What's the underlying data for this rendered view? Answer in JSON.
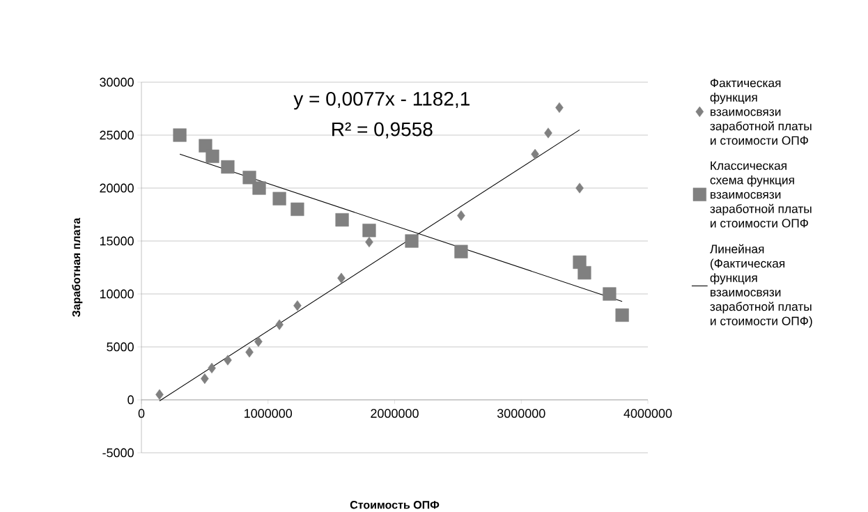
{
  "chart_data": {
    "type": "scatter",
    "xlabel": "Стоимость ОПФ",
    "ylabel": "Заработная плата",
    "xlim": [
      0,
      4000000
    ],
    "ylim": [
      -5000,
      30000
    ],
    "xticks": [
      0,
      1000000,
      2000000,
      3000000,
      4000000
    ],
    "yticks": [
      -5000,
      0,
      5000,
      10000,
      15000,
      20000,
      25000,
      30000
    ],
    "grid": "y",
    "legend": "right",
    "annotations": [
      "y = 0,0077x - 1182,1",
      "R² = 0,9558"
    ],
    "series": [
      {
        "name": "Фактическая функция взаимосвязи заработной платы и стоимости ОПФ",
        "marker": "diamond",
        "color": "#808080",
        "x": [
          143000,
          500000,
          556000,
          682000,
          853000,
          924000,
          1090000,
          1232000,
          1579000,
          1799000,
          2525000,
          3109000,
          3213000,
          3301000,
          3461000
        ],
        "values": [
          500,
          2000,
          3000,
          3750,
          4500,
          5500,
          7100,
          8900,
          11500,
          14900,
          17400,
          23200,
          25200,
          27600,
          20000
        ]
      },
      {
        "name": "Классическая схема функция взаимосвязи заработной платы и стоимости ОПФ",
        "marker": "square",
        "color": "#808080",
        "x": [
          303000,
          506000,
          561000,
          682000,
          853000,
          930000,
          1090000,
          1232000,
          1585000,
          1799000,
          2135000,
          2525000,
          3461000,
          3499000,
          3697000,
          3797000
        ],
        "values": [
          25000,
          24000,
          23000,
          22000,
          21000,
          20000,
          19000,
          18000,
          17000,
          16000,
          15000,
          14000,
          13000,
          12000,
          10000,
          8000
        ]
      },
      {
        "name": "Линейная (Фактическая функция взаимосвязи заработной платы и стоимости ОПФ)",
        "type": "line",
        "marker": "none",
        "color": "#000000",
        "x": [
          143000,
          3461000
        ],
        "values": [
          -100,
          25500
        ]
      },
      {
        "type": "line",
        "marker": "none",
        "color": "#000000",
        "x": [
          303000,
          3797000
        ],
        "values": [
          23200,
          9300
        ]
      }
    ]
  }
}
